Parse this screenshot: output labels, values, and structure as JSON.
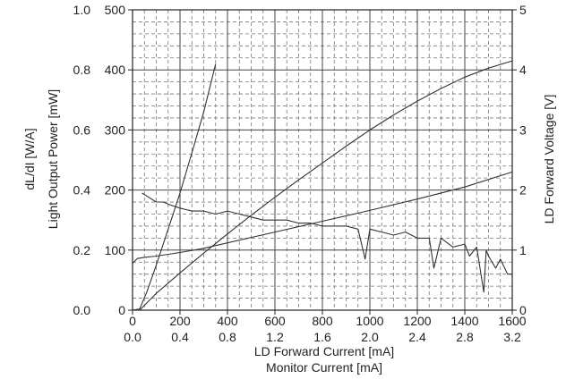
{
  "chart_data": {
    "type": "line",
    "xlabel": "LD Forward Current [mA]",
    "xlabel2": "Monitor Current [mA]",
    "ylabel_dldi": "dL/dI [W/A]",
    "ylabel_power": "Light Output Power [mW]",
    "ylabel_right": "LD Forward Voltage [V]",
    "xlim": [
      0,
      1600
    ],
    "x2lim": [
      0,
      3.2
    ],
    "ylim_power": [
      0,
      500
    ],
    "ylim_dldi": [
      0,
      1.0
    ],
    "ylim_voltage": [
      0,
      5
    ],
    "x_ticks": [
      "0",
      "200",
      "400",
      "600",
      "800",
      "1000",
      "1200",
      "1400",
      "1600"
    ],
    "x2_ticks": [
      "0.0",
      "0.4",
      "0.8",
      "1.2",
      "1.6",
      "2.0",
      "2.4",
      "2.8",
      "3.2"
    ],
    "y_power_ticks": [
      "0",
      "100",
      "200",
      "300",
      "400",
      "500"
    ],
    "y_dldi_ticks": [
      "0.0",
      "0.2",
      "0.4",
      "0.6",
      "0.8",
      "1.0"
    ],
    "y_voltage_ticks": [
      "0",
      "1",
      "2",
      "3",
      "4",
      "5"
    ],
    "grid": true,
    "series": [
      {
        "axis": "power",
        "x": [
          0,
          30,
          100,
          200,
          300,
          400,
          500,
          600,
          700,
          800,
          900,
          1000,
          1100,
          1200,
          1300,
          1400,
          1500,
          1600
        ],
        "y": [
          0,
          0,
          28,
          62,
          95,
          127,
          158,
          188,
          217,
          245,
          273,
          300,
          325,
          348,
          369,
          388,
          403,
          415
        ]
      },
      {
        "axis": "power",
        "x": [
          0,
          30,
          60,
          100,
          150,
          200,
          250,
          300,
          350
        ],
        "y": [
          0,
          2,
          30,
          75,
          135,
          195,
          262,
          330,
          410
        ]
      },
      {
        "axis": "voltage",
        "x": [
          0,
          20,
          50,
          100,
          200,
          300,
          400,
          600,
          800,
          1000,
          1200,
          1400,
          1600
        ],
        "y": [
          0.78,
          0.86,
          0.88,
          0.9,
          0.96,
          1.03,
          1.12,
          1.3,
          1.48,
          1.66,
          1.85,
          2.05,
          2.3
        ]
      },
      {
        "axis": "dldi",
        "x": [
          40,
          60,
          80,
          100,
          130,
          160,
          200,
          250,
          300,
          350,
          400,
          450,
          500,
          550,
          600,
          650,
          700,
          750,
          800,
          850,
          900,
          950,
          980,
          1000,
          1050,
          1100,
          1150,
          1200,
          1250,
          1270,
          1300,
          1350,
          1400,
          1420,
          1450,
          1480,
          1490,
          1500,
          1530,
          1550,
          1580,
          1600
        ],
        "y": [
          0.39,
          0.38,
          0.37,
          0.36,
          0.36,
          0.35,
          0.34,
          0.33,
          0.33,
          0.32,
          0.33,
          0.32,
          0.31,
          0.3,
          0.3,
          0.3,
          0.29,
          0.29,
          0.28,
          0.28,
          0.28,
          0.27,
          0.17,
          0.27,
          0.26,
          0.25,
          0.26,
          0.24,
          0.24,
          0.14,
          0.24,
          0.21,
          0.22,
          0.18,
          0.21,
          0.06,
          0.2,
          0.18,
          0.14,
          0.17,
          0.12,
          0.12
        ]
      }
    ]
  }
}
